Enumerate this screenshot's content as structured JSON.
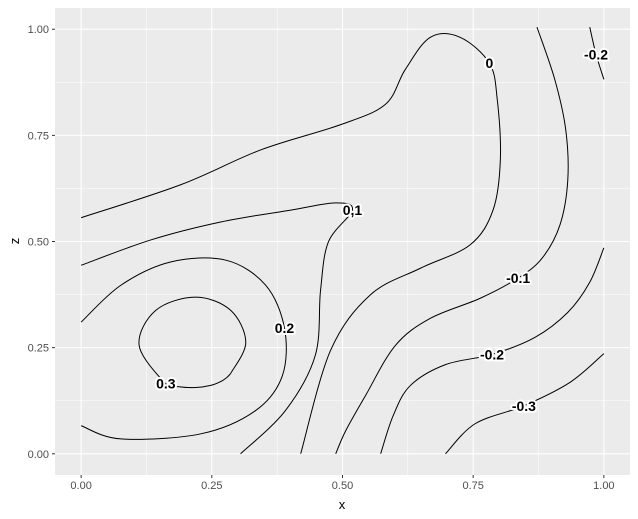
{
  "chart_data": {
    "type": "contour",
    "x_label": "x",
    "y_label": "z",
    "xlim": [
      -0.05,
      1.05
    ],
    "ylim": [
      -0.05,
      1.05
    ],
    "xticks": [
      {
        "value": 0,
        "label": "0.00"
      },
      {
        "value": 0.25,
        "label": "0.25"
      },
      {
        "value": 0.5,
        "label": "0.50"
      },
      {
        "value": 0.75,
        "label": "0.75"
      },
      {
        "value": 1,
        "label": "1.00"
      }
    ],
    "yticks": [
      {
        "value": 0,
        "label": "0.00"
      },
      {
        "value": 0.25,
        "label": "0.25"
      },
      {
        "value": 0.5,
        "label": "0.50"
      },
      {
        "value": 0.75,
        "label": "0.75"
      },
      {
        "value": 1,
        "label": "1.00"
      }
    ],
    "x_minor": [
      0.125,
      0.375,
      0.625,
      0.875
    ],
    "y_minor": [
      0.125,
      0.375,
      0.625,
      0.875
    ],
    "grid": true,
    "color": "#000000",
    "panel_color": "#ebebeb",
    "contours": [
      {
        "level": 0,
        "label": "0",
        "x": [
          0,
          0.191,
          0.344,
          0.496,
          0.582,
          0.62,
          0.668,
          0.725,
          0.781,
          0.796,
          0.802,
          0.788,
          0.744,
          0.649,
          0.553,
          0.477,
          0.42
        ],
        "y": [
          0.556,
          0.634,
          0.716,
          0.775,
          0.823,
          0.905,
          0.981,
          0.981,
          0.92,
          0.835,
          0.693,
          0.574,
          0.492,
          0.437,
          0.374,
          0.243,
          0
        ]
      },
      {
        "level": 0.1,
        "label": "0,1",
        "x": [
          0,
          0.134,
          0.267,
          0.401,
          0.487,
          0.519,
          0.473,
          0.458,
          0.448,
          0.391,
          0.305
        ],
        "y": [
          0.444,
          0.504,
          0.546,
          0.574,
          0.591,
          0.574,
          0.499,
          0.385,
          0.232,
          0.102,
          0
        ]
      },
      {
        "level": 0.2,
        "label": "0.2",
        "x": [
          0,
          0.076,
          0.172,
          0.277,
          0.353,
          0.389,
          0.385,
          0.334,
          0.229,
          0.076,
          0
        ],
        "y": [
          0.31,
          0.397,
          0.452,
          0.456,
          0.397,
          0.296,
          0.184,
          0.102,
          0.047,
          0.035,
          0.066
        ]
      },
      {
        "level": 0.3,
        "label": "0.3",
        "x": [
          0.286,
          0.315,
          0.286,
          0.219,
          0.143,
          0.111,
          0.162,
          0.187,
          0.219,
          0.248,
          0.267,
          0.279,
          0.286
        ],
        "y": [
          0.189,
          0.262,
          0.338,
          0.369,
          0.338,
          0.255,
          0.165,
          0.158,
          0.156,
          0.161,
          0.17,
          0.18,
          0.189
        ]
      },
      {
        "level": -0.1,
        "label": "-0.1",
        "x": [
          0.872,
          0.906,
          0.927,
          0.931,
          0.916,
          0.882,
          0.836,
          0.763,
          0.668,
          0.601,
          0.544,
          0.506,
          0.487
        ],
        "y": [
          1.005,
          0.882,
          0.764,
          0.645,
          0.539,
          0.461,
          0.414,
          0.366,
          0.319,
          0.255,
          0.137,
          0.054,
          0
        ]
      },
      {
        "level": -0.2,
        "label": "-0.2",
        "x": [
          1,
          0.973,
          0.931,
          0.868,
          0.786,
          0.697,
          0.63,
          0.597,
          0.573
        ],
        "y": [
          0.485,
          0.404,
          0.333,
          0.274,
          0.234,
          0.21,
          0.161,
          0.09,
          0
        ]
      },
      {
        "level": -0.2,
        "label": "-0.2",
        "x": [
          0.973,
          0.985,
          1
        ],
        "y": [
          1.005,
          0.941,
          0.882
        ]
      },
      {
        "level": -0.3,
        "label": "-0.3",
        "x": [
          1,
          0.935,
          0.847,
          0.754,
          0.697
        ],
        "y": [
          0.236,
          0.168,
          0.113,
          0.071,
          0
        ]
      }
    ]
  }
}
